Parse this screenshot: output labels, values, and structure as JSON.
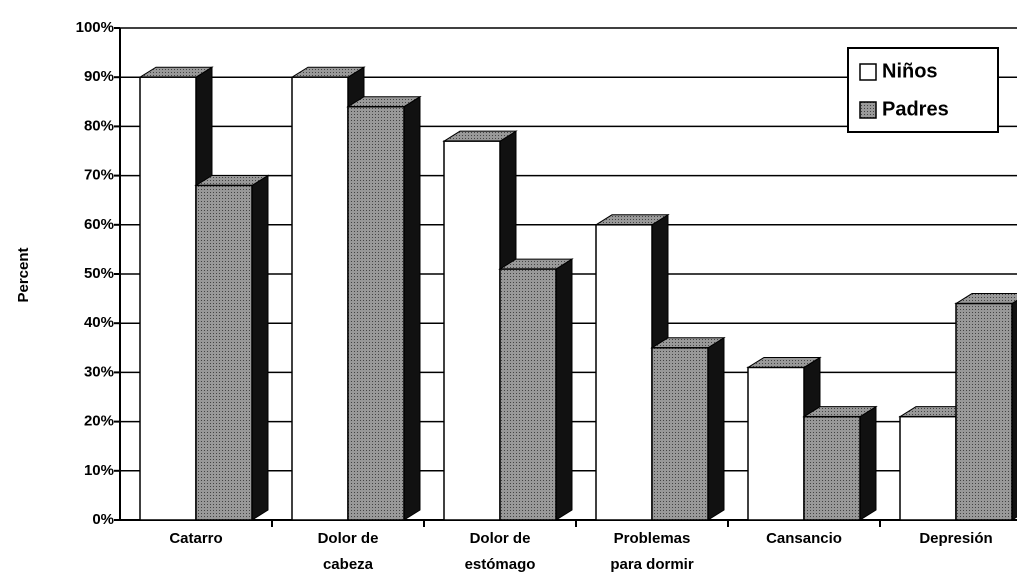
{
  "chart_data": {
    "type": "bar3d",
    "y_label": "Percent",
    "categories": [
      "Catarro",
      "Dolor de\ncabeza",
      "Dolor de\nestómago",
      "Problemas\npara dormir",
      "Cansancio",
      "Depresión"
    ],
    "series": [
      {
        "name": "Niños",
        "color": "#ffffff",
        "values": [
          90,
          90,
          77,
          60,
          31,
          21
        ]
      },
      {
        "name": "Padres",
        "color": "#3a3a3a",
        "values": [
          68,
          84,
          51,
          35,
          21,
          44
        ]
      }
    ],
    "ylim": [
      0,
      100
    ],
    "yticks": [
      {
        "value": 0,
        "label": "0%"
      },
      {
        "value": 10,
        "label": "10%"
      },
      {
        "value": 20,
        "label": "20%"
      },
      {
        "value": 30,
        "label": "30%"
      },
      {
        "value": 40,
        "label": "40%"
      },
      {
        "value": 50,
        "label": "50%"
      },
      {
        "value": 60,
        "label": "60%"
      },
      {
        "value": 70,
        "label": "70%"
      },
      {
        "value": 80,
        "label": "80%"
      },
      {
        "value": 90,
        "label": "90%"
      },
      {
        "value": 100,
        "label": "100%"
      }
    ],
    "grid": true,
    "legend": "top-right"
  }
}
